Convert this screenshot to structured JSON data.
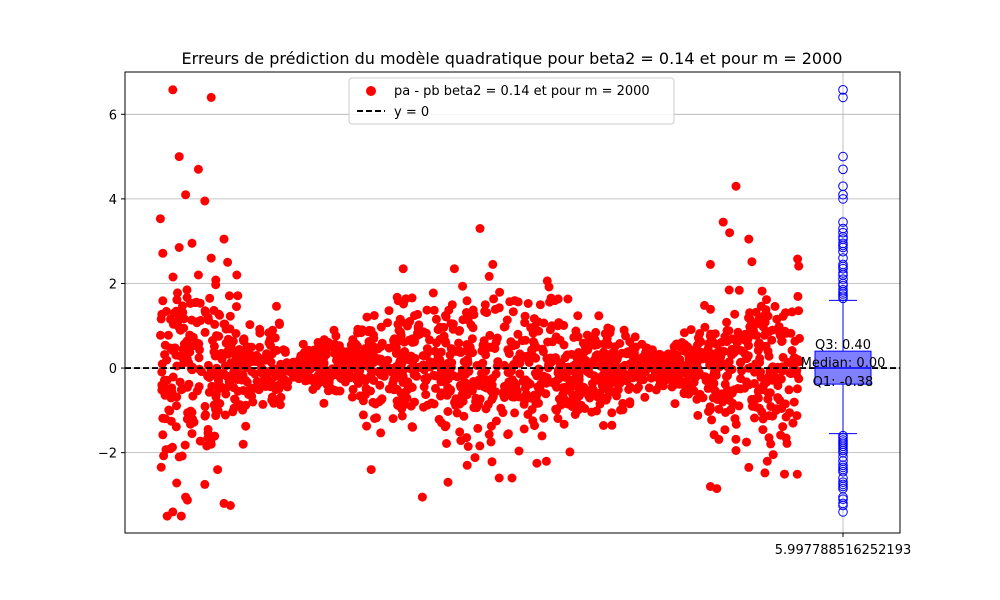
{
  "chart_data": {
    "type": "scatter",
    "title": "Erreurs de prédiction du modèle quadratique pour beta2 = 0.14 et pour m = 2000",
    "xlabel": "",
    "ylabel": "",
    "ylim": [
      -3.9,
      7.0
    ],
    "yticks": [
      -2,
      0,
      2,
      4,
      6
    ],
    "ytick_labels": [
      "−2",
      "0",
      "2",
      "4",
      "6"
    ],
    "xtick_label": "5.997788516252193",
    "grid": true,
    "legend_position": "top-center",
    "legend": [
      {
        "label": "pa - pb beta2 = 0.14 et pour m = 2000",
        "marker": "circle",
        "color": "#ff0000"
      },
      {
        "label": "y = 0",
        "marker": "dashed-line",
        "color": "#000000"
      }
    ],
    "series": [
      {
        "name": "pa - pb beta2 = 0.14 et pour m = 2000",
        "color": "#ff0000",
        "point_count": 2000,
        "shape": "sine-modulated error band: wide at left edge, narrow near first node, wide in middle, narrow near second node, wide at right edge",
        "points": [
          [
            0.02,
            6.58
          ],
          [
            0.08,
            6.4
          ],
          [
            0.03,
            5.0
          ],
          [
            0.06,
            4.7
          ],
          [
            0.04,
            4.1
          ],
          [
            0.07,
            3.95
          ],
          [
            0.03,
            2.85
          ],
          [
            0.05,
            2.95
          ],
          [
            0.06,
            2.2
          ],
          [
            0.08,
            2.6
          ],
          [
            0.1,
            3.05
          ],
          [
            0.12,
            2.2
          ],
          [
            0.02,
            -3.4
          ],
          [
            0.04,
            -3.05
          ],
          [
            0.07,
            -2.75
          ],
          [
            0.09,
            -2.4
          ],
          [
            0.1,
            -3.2
          ],
          [
            0.11,
            -3.25
          ],
          [
            0.03,
            -2.1
          ],
          [
            0.05,
            -1.55
          ],
          [
            0.08,
            -1.8
          ],
          [
            0.13,
            -1.8
          ],
          [
            0.5,
            3.3
          ],
          [
            0.52,
            2.45
          ],
          [
            0.38,
            2.35
          ],
          [
            0.46,
            2.35
          ],
          [
            0.33,
            -2.4
          ],
          [
            0.41,
            -3.05
          ],
          [
            0.45,
            -2.7
          ],
          [
            0.53,
            -2.6
          ],
          [
            0.55,
            -2.6
          ],
          [
            0.48,
            -2.3
          ],
          [
            0.9,
            4.3
          ],
          [
            0.88,
            3.45
          ],
          [
            0.92,
            3.05
          ],
          [
            0.89,
            3.2
          ],
          [
            0.86,
            2.45
          ],
          [
            0.86,
            -2.8
          ],
          [
            0.87,
            -2.85
          ],
          [
            0.92,
            -2.35
          ],
          [
            0.9,
            -1.95
          ]
        ]
      },
      {
        "name": "y = 0",
        "type": "hline",
        "value": 0,
        "color": "#000000",
        "style": "dashed"
      }
    ],
    "boxplot": {
      "color": "#0000ff",
      "box_fill": "#8080ff",
      "q1": -0.38,
      "median": 0.0,
      "q3": 0.4,
      "whisker_low": -1.55,
      "whisker_high": 1.6,
      "q1_label": "Q1: -0.38",
      "median_label": "Median: 0.00",
      "q3_label": "Q3: 0.40",
      "outliers": [
        6.58,
        6.4,
        5.0,
        4.7,
        4.3,
        4.1,
        4.0,
        3.45,
        3.3,
        3.2,
        3.1,
        3.05,
        2.95,
        2.9,
        2.85,
        2.75,
        2.6,
        2.45,
        2.4,
        2.35,
        2.25,
        2.2,
        2.1,
        2.0,
        1.95,
        1.85,
        1.8,
        1.75,
        1.7,
        1.65,
        -1.6,
        -1.65,
        -1.7,
        -1.75,
        -1.8,
        -1.85,
        -1.9,
        -1.95,
        -2.0,
        -2.1,
        -2.2,
        -2.3,
        -2.35,
        -2.4,
        -2.45,
        -2.6,
        -2.7,
        -2.75,
        -2.8,
        -2.85,
        -3.05,
        -3.1,
        -3.2,
        -3.25,
        -3.4
      ]
    }
  }
}
